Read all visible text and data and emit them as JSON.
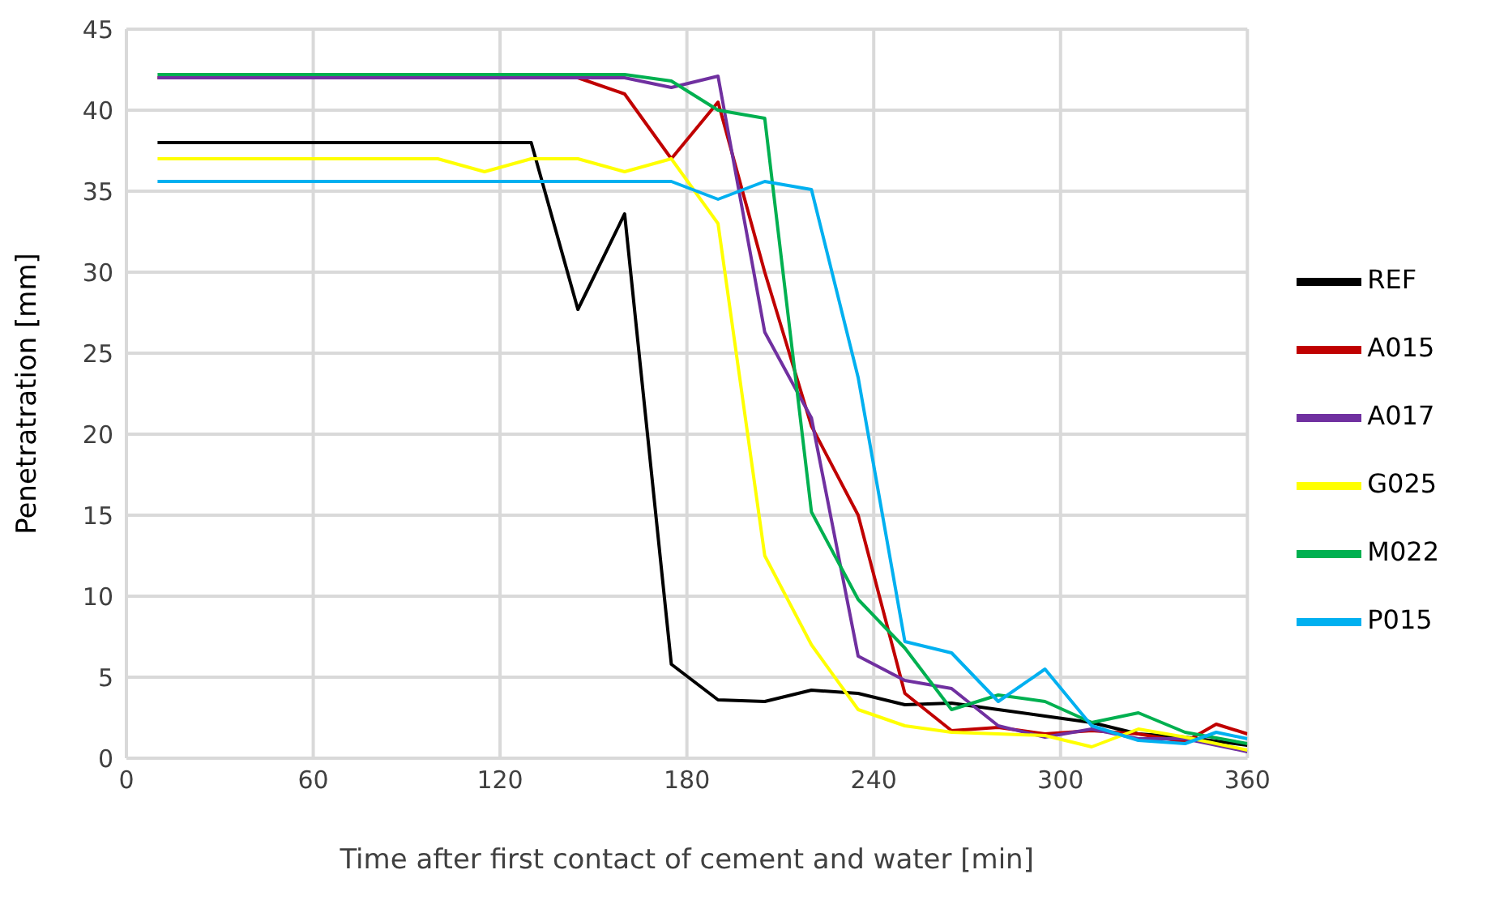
{
  "chart_data": {
    "type": "line",
    "xlabel": "Time after first contact of cement and water [min]",
    "ylabel": "Penetratration [mm]",
    "xlim": [
      0,
      360
    ],
    "xticks": [
      0,
      60,
      120,
      180,
      240,
      300,
      360
    ],
    "ylim": [
      0,
      45
    ],
    "yticks": [
      0,
      5,
      10,
      15,
      20,
      25,
      30,
      35,
      40,
      45
    ],
    "grid": true,
    "legend": "right",
    "marker": "none",
    "line_style": "solid",
    "series": [
      {
        "name": "REF",
        "color": "#000000",
        "x": [
          10,
          130,
          145,
          160,
          175,
          190,
          205,
          220,
          235,
          250,
          265,
          280,
          295,
          310,
          325,
          340,
          360
        ],
        "values": [
          38,
          38,
          27.7,
          33.6,
          5.8,
          3.6,
          3.5,
          4.2,
          4.0,
          3.3,
          3.4,
          3.0,
          2.6,
          2.2,
          1.5,
          1.3,
          0.8
        ]
      },
      {
        "name": "A015",
        "color": "#c00000",
        "x": [
          10,
          145,
          160,
          175,
          190,
          205,
          220,
          235,
          250,
          265,
          280,
          295,
          310,
          325,
          340,
          350,
          360
        ],
        "values": [
          42,
          42,
          41,
          37,
          40.5,
          30,
          20.5,
          15,
          4,
          1.7,
          1.9,
          1.5,
          1.7,
          1.5,
          1.0,
          2.1,
          1.5
        ]
      },
      {
        "name": "A017",
        "color": "#7030a0",
        "x": [
          10,
          160,
          175,
          190,
          205,
          220,
          235,
          250,
          265,
          280,
          295,
          310,
          325,
          340,
          360
        ],
        "values": [
          42,
          42,
          41.4,
          42.1,
          26.3,
          21,
          6.3,
          4.8,
          4.3,
          2,
          1.3,
          1.8,
          1.2,
          1.2,
          0.4
        ]
      },
      {
        "name": "G025",
        "color": "#ffff00",
        "x": [
          10,
          100,
          115,
          130,
          145,
          160,
          175,
          190,
          205,
          220,
          235,
          250,
          265,
          280,
          295,
          310,
          325,
          340,
          360
        ],
        "values": [
          37,
          37,
          36.2,
          37,
          37,
          36.2,
          37,
          33,
          12.5,
          7,
          3,
          2,
          1.6,
          1.5,
          1.4,
          0.7,
          1.8,
          1.3,
          0.5
        ]
      },
      {
        "name": "M022",
        "color": "#00b050",
        "x": [
          10,
          160,
          175,
          190,
          205,
          220,
          235,
          250,
          265,
          280,
          295,
          310,
          325,
          340,
          360
        ],
        "values": [
          42.2,
          42.2,
          41.8,
          40,
          39.5,
          15.2,
          9.8,
          6.8,
          3,
          3.9,
          3.5,
          2.2,
          2.8,
          1.6,
          0.9
        ]
      },
      {
        "name": "P015",
        "color": "#00b0f0",
        "x": [
          10,
          175,
          190,
          205,
          220,
          235,
          250,
          265,
          280,
          295,
          310,
          325,
          340,
          350,
          360
        ],
        "values": [
          35.6,
          35.6,
          34.5,
          35.6,
          35.1,
          23.5,
          7.2,
          6.5,
          3.5,
          5.5,
          2,
          1.1,
          0.9,
          1.6,
          1.2
        ]
      }
    ]
  }
}
